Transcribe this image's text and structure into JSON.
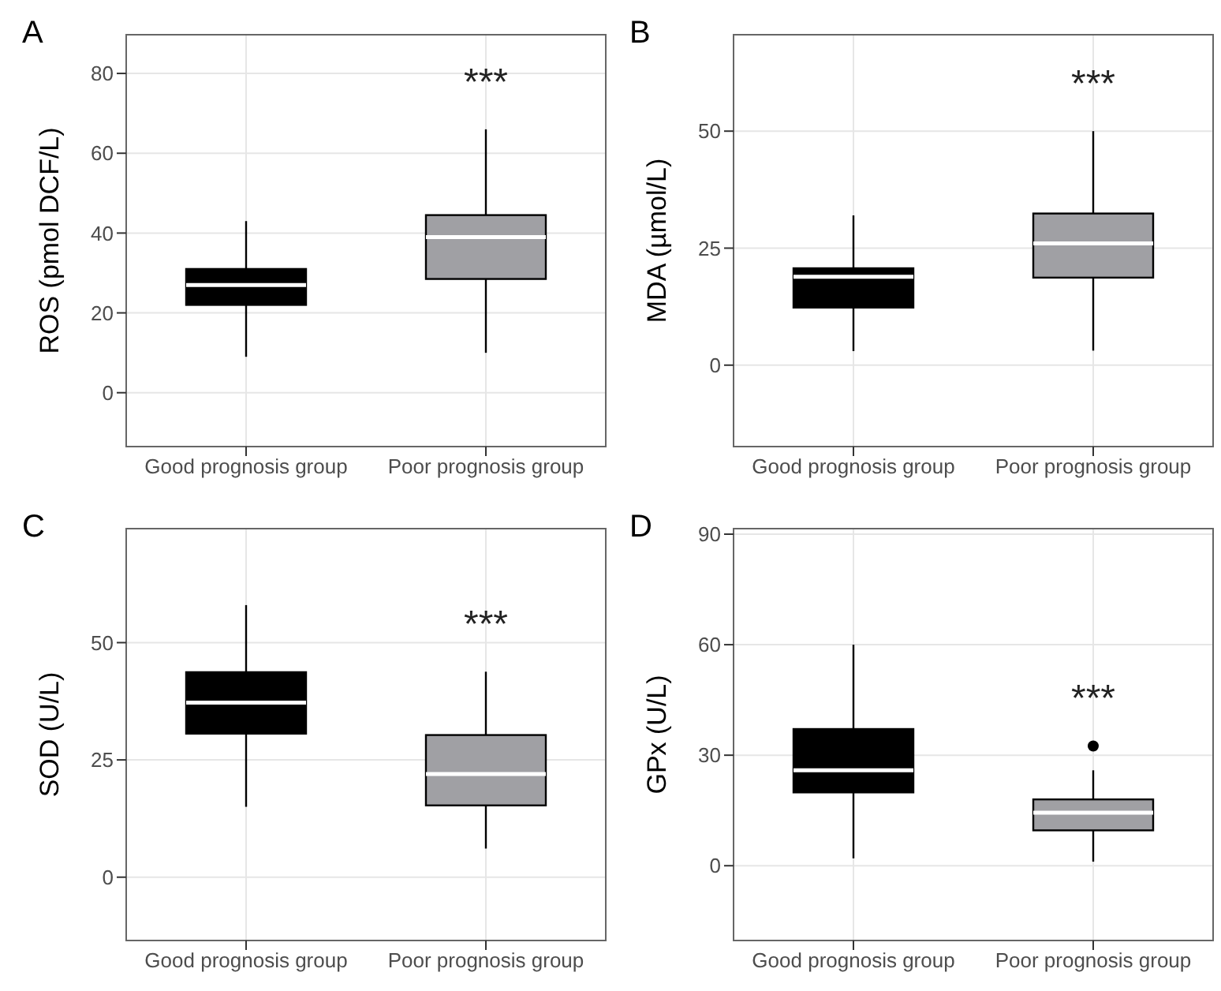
{
  "chart_data": [
    {
      "type": "box",
      "title": "A",
      "ylabel": "ROS (pmol DCF/L)",
      "categories": [
        "Good prognosis group",
        "Poor prognosis group"
      ],
      "colors": [
        "#000000",
        "#a0a0a4"
      ],
      "boxes": [
        {
          "low": 9,
          "q1": 22,
          "median": 27,
          "q3": 31,
          "high": 43
        },
        {
          "low": 10,
          "q1": 28.5,
          "median": 39,
          "q3": 44.5,
          "high": 66
        }
      ],
      "ylim": [
        -13.5,
        89.7
      ],
      "yticks": [
        0,
        20,
        40,
        60,
        80
      ],
      "grid": true,
      "annotations": [
        "***"
      ]
    },
    {
      "type": "box",
      "title": "B",
      "ylabel": "MDA (µmol/L)",
      "categories": [
        "Good prognosis group",
        "Poor prognosis group"
      ],
      "colors": [
        "#000000",
        "#a0a0a4"
      ],
      "boxes": [
        {
          "low": 3,
          "q1": 12.3,
          "median": 18.9,
          "q3": 20.7,
          "high": 32
        },
        {
          "low": 3.1,
          "q1": 18.7,
          "median": 26,
          "q3": 32.4,
          "high": 50
        }
      ],
      "ylim": [
        -17.4,
        70.6
      ],
      "yticks": [
        0,
        25,
        50
      ],
      "grid": true,
      "annotations": [
        "***"
      ]
    },
    {
      "type": "box",
      "title": "C",
      "ylabel": "SOD (U/L)",
      "categories": [
        "Good prognosis group",
        "Poor prognosis group"
      ],
      "colors": [
        "#000000",
        "#a0a0a4"
      ],
      "boxes": [
        {
          "low": 15,
          "q1": 30.6,
          "median": 37.2,
          "q3": 43.7,
          "high": 58
        },
        {
          "low": 6.1,
          "q1": 15.3,
          "median": 22,
          "q3": 30.3,
          "high": 43.8
        }
      ],
      "ylim": [
        -13.5,
        74.3
      ],
      "yticks": [
        0,
        25,
        50
      ],
      "grid": true,
      "annotations": [
        "***"
      ]
    },
    {
      "type": "box",
      "title": "D",
      "ylabel": "GPx (U/L)",
      "categories": [
        "Good prognosis group",
        "Poor prognosis group"
      ],
      "colors": [
        "#000000",
        "#a0a0a4"
      ],
      "boxes": [
        {
          "low": 2,
          "q1": 19.9,
          "median": 25.9,
          "q3": 37.1,
          "high": 60
        },
        {
          "low": 1.1,
          "q1": 9.6,
          "median": 14.4,
          "q3": 18,
          "high": 25.9,
          "outliers": [
            32.5
          ]
        }
      ],
      "ylim": [
        -20.3,
        91.5
      ],
      "yticks": [
        0,
        30,
        60,
        90
      ],
      "grid": true,
      "annotations": [
        "***"
      ]
    }
  ]
}
